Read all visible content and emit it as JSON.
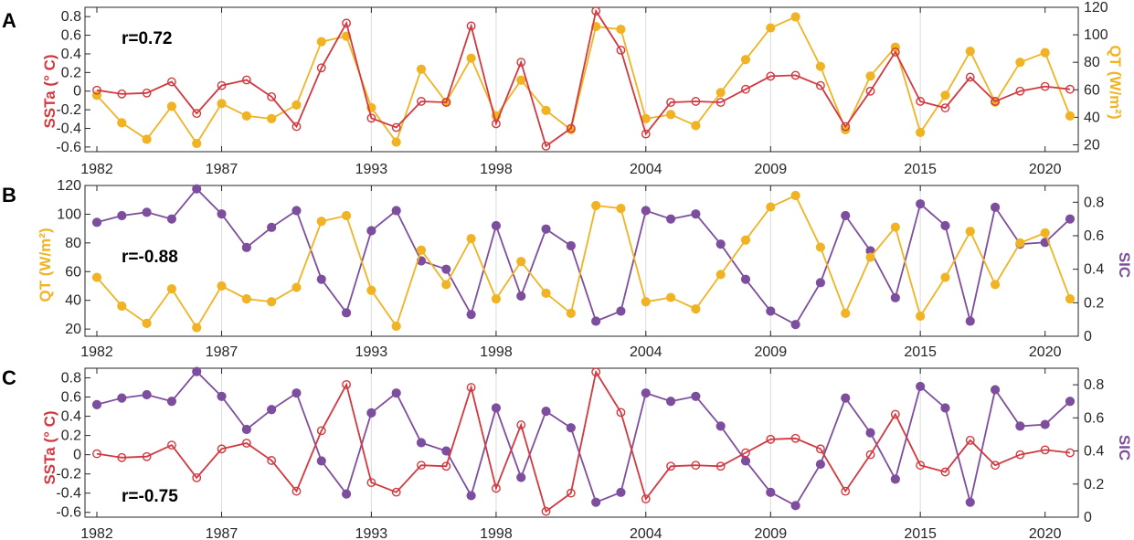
{
  "colors": {
    "sst": "#d2383f",
    "qt": "#f0b323",
    "sic": "#7e4e9e",
    "axis": "#262626",
    "grid": "#dcdcdc"
  },
  "years": [
    1982,
    1983,
    1984,
    1985,
    1986,
    1987,
    1988,
    1989,
    1990,
    1991,
    1992,
    1993,
    1994,
    1995,
    1996,
    1997,
    1998,
    1999,
    2000,
    2001,
    2002,
    2003,
    2004,
    2005,
    2006,
    2007,
    2008,
    2009,
    2010,
    2011,
    2012,
    2013,
    2014,
    2015,
    2016,
    2017,
    2018,
    2019,
    2020,
    2021
  ],
  "series": {
    "SSTa": [
      0.01,
      -0.03,
      -0.02,
      0.1,
      -0.24,
      0.06,
      0.12,
      -0.06,
      -0.38,
      0.25,
      0.73,
      -0.29,
      -0.39,
      -0.11,
      -0.12,
      0.7,
      -0.35,
      0.31,
      -0.59,
      -0.4,
      0.86,
      0.44,
      -0.46,
      -0.12,
      -0.11,
      -0.12,
      0.02,
      0.16,
      0.17,
      0.06,
      -0.38,
      0.0,
      0.42,
      -0.11,
      -0.18,
      0.15,
      -0.11,
      0.0,
      0.05,
      0.02
    ],
    "QT": [
      56,
      36,
      24,
      48,
      21,
      50,
      41,
      39,
      49,
      95,
      99,
      47,
      22,
      75,
      51,
      83,
      41,
      67,
      45,
      31,
      106,
      104,
      39,
      42,
      34,
      58,
      82,
      105,
      113,
      77,
      31,
      70,
      91,
      29,
      56,
      88,
      51,
      80,
      87,
      41
    ],
    "SIC": [
      0.68,
      0.72,
      0.74,
      0.7,
      0.88,
      0.73,
      0.53,
      0.65,
      0.75,
      0.34,
      0.14,
      0.63,
      0.75,
      0.45,
      0.4,
      0.13,
      0.66,
      0.24,
      0.64,
      0.54,
      0.09,
      0.15,
      0.75,
      0.7,
      0.73,
      0.55,
      0.34,
      0.15,
      0.07,
      0.32,
      0.72,
      0.51,
      0.23,
      0.79,
      0.66,
      0.09,
      0.77,
      0.55,
      0.56,
      0.7
    ]
  },
  "chart_data": [
    {
      "panel": "A",
      "type": "line",
      "annotation": "r=0.72",
      "x_ticks": [
        "1982",
        "1987",
        "1993",
        "1998",
        "2004",
        "2009",
        "2015",
        "2020"
      ],
      "left_axis": {
        "label": "SSTa (° C)",
        "series": "SSTa",
        "ylim": [
          -0.65,
          0.9
        ],
        "ticks": [
          "0.8",
          "0.6",
          "0.4",
          "0.2",
          "0",
          "-0.2",
          "-0.4",
          "-0.6"
        ],
        "tick_values": [
          0.8,
          0.6,
          0.4,
          0.2,
          0,
          -0.2,
          -0.4,
          -0.6
        ],
        "marker": "open-circle"
      },
      "right_axis": {
        "label": "QT (W/m²)",
        "series": "QT",
        "ylim": [
          15,
          120
        ],
        "ticks": [
          "120",
          "100",
          "80",
          "60",
          "40",
          "20"
        ],
        "tick_values": [
          120,
          100,
          80,
          60,
          40,
          20
        ],
        "marker": "filled-circle"
      }
    },
    {
      "panel": "B",
      "type": "line",
      "annotation": "r=-0.88",
      "x_ticks": [
        "1982",
        "1987",
        "1993",
        "1998",
        "2004",
        "2009",
        "2015",
        "2020"
      ],
      "left_axis": {
        "label": "QT (W/m²)",
        "series": "QT",
        "ylim": [
          15,
          120
        ],
        "ticks": [
          "120",
          "100",
          "80",
          "60",
          "40",
          "20"
        ],
        "tick_values": [
          120,
          100,
          80,
          60,
          40,
          20
        ],
        "marker": "filled-circle"
      },
      "right_axis": {
        "label": "SIC",
        "series": "SIC",
        "ylim": [
          0,
          0.9
        ],
        "ticks": [
          "0.8",
          "0.6",
          "0.4",
          "0.2",
          "0"
        ],
        "tick_values": [
          0.8,
          0.6,
          0.4,
          0.2,
          0
        ],
        "marker": "filled-circle"
      }
    },
    {
      "panel": "C",
      "type": "line",
      "annotation": "r=-0.75",
      "x_ticks": [
        "1982",
        "1987",
        "1993",
        "1998",
        "2004",
        "2009",
        "2015",
        "2020"
      ],
      "left_axis": {
        "label": "SSTa (° C)",
        "series": "SSTa",
        "ylim": [
          -0.65,
          0.9
        ],
        "ticks": [
          "0.8",
          "0.6",
          "0.4",
          "0.2",
          "0",
          "-0.2",
          "-0.4",
          "-0.6"
        ],
        "tick_values": [
          0.8,
          0.6,
          0.4,
          0.2,
          0,
          -0.2,
          -0.4,
          -0.6
        ],
        "marker": "open-circle"
      },
      "right_axis": {
        "label": "SIC",
        "series": "SIC",
        "ylim": [
          0,
          0.9
        ],
        "ticks": [
          "0.8",
          "0.6",
          "0.4",
          "0.2",
          "0"
        ],
        "tick_values": [
          0.8,
          0.6,
          0.4,
          0.2,
          0
        ],
        "marker": "filled-circle"
      }
    }
  ]
}
